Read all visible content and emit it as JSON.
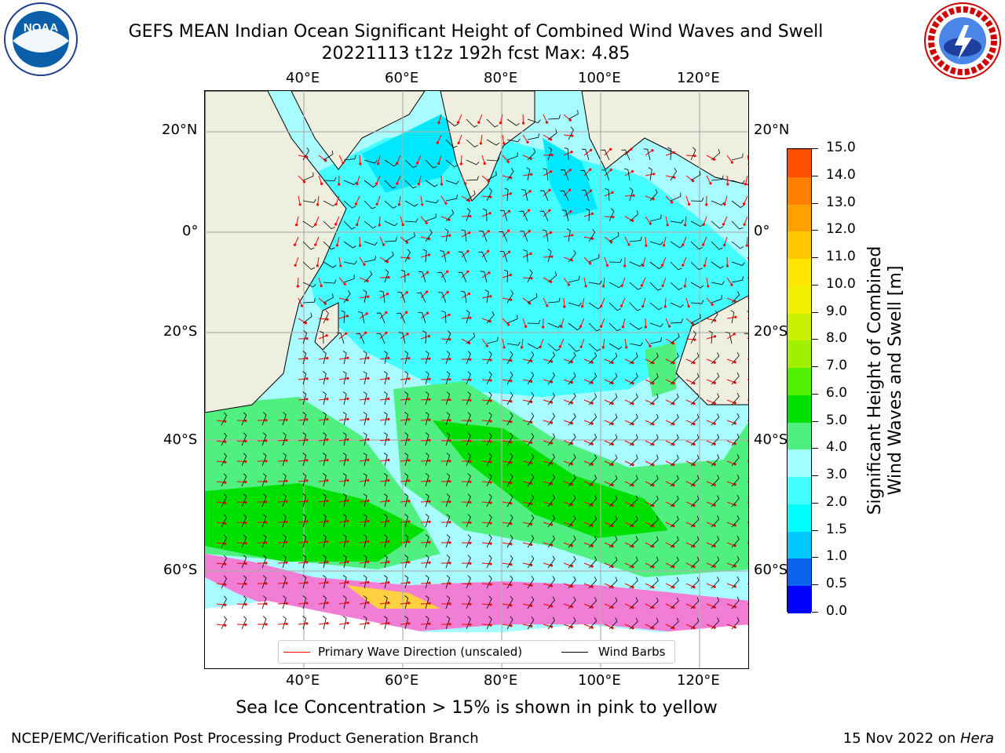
{
  "header": {
    "title_line1": "GEFS MEAN Indian Ocean Significant Height of Combined Wind Waves and Swell",
    "title_line2": "20221113 t12z 192h fcst   Max: 4.85"
  },
  "logos": {
    "noaa_text": "NOAA",
    "noaa_ring": "NATIONAL OCEANIC AND ATMOSPHERIC ADMINISTRATION · U.S. DEPARTMENT OF COMMERCE",
    "nws_ring": "NATIONAL WEATHER SERVICE"
  },
  "axes": {
    "lon_ticks": [
      "40°E",
      "60°E",
      "80°E",
      "100°E",
      "120°E"
    ],
    "lat_ticks_left": [
      "20°N",
      "0°",
      "20°S",
      "40°S",
      "60°S"
    ],
    "lat_ticks_right": [
      "20°N",
      "0°",
      "20°S",
      "40°S",
      "60°S"
    ]
  },
  "map": {
    "land_color": "#efefdf",
    "grid_color": "#b0b0b0",
    "arrow_color": "#ff0000",
    "barb_color": "#000000"
  },
  "colorbar": {
    "title_line1": "Significant Height of Combined",
    "title_line2": "Wind Waves and Swell [m]",
    "levels": [
      "0.0",
      "0.5",
      "1.0",
      "1.5",
      "2.0",
      "3.0",
      "4.0",
      "5.0",
      "6.0",
      "7.0",
      "8.0",
      "9.0",
      "10.0",
      "11.0",
      "12.0",
      "13.0",
      "14.0",
      "15.0"
    ],
    "colors": [
      "#0000ff",
      "#0a64f0",
      "#00c8ff",
      "#00ffff",
      "#44ffff",
      "#a0ffff",
      "#50f080",
      "#00e000",
      "#50f000",
      "#a0f000",
      "#c8f000",
      "#f0f000",
      "#ffe600",
      "#ffc800",
      "#ffa000",
      "#ff8000",
      "#ff5000",
      "#ff1e00"
    ]
  },
  "legend": {
    "wave_label": "Primary Wave Direction (unscaled)",
    "barb_label": "Wind Barbs"
  },
  "caption": "Sea Ice Concentration > 15% is shown in pink to yellow",
  "footer": {
    "left": "NCEP/EMC/Verification Post Processing Product Generation Branch",
    "right_text": "15 Nov 2022 on ",
    "right_host": "Hera"
  }
}
